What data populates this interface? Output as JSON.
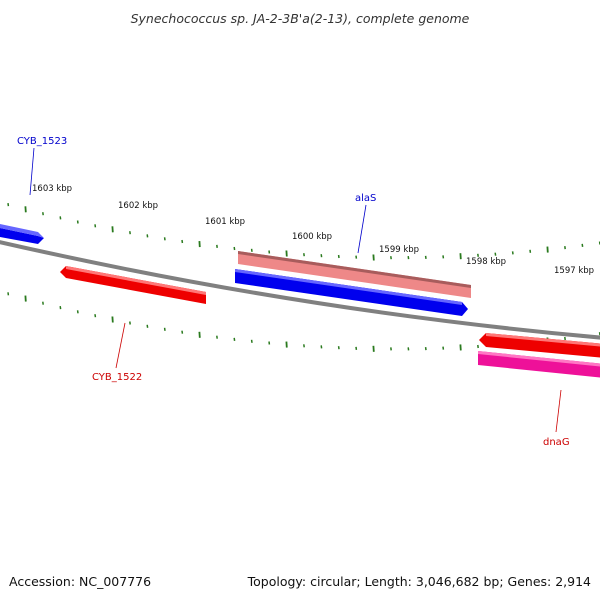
{
  "title": "Synechococcus sp. JA-2-3B'a(2-13), complete genome",
  "footer": {
    "accession": "Accession: NC_007776",
    "summary": "Topology: circular; Length: 3,046,682 bp; Genes: 2,914"
  },
  "colors": {
    "backbone": "#808080",
    "tick": "#2a7a1e",
    "forward_gene": "#0000ee",
    "reverse_gene": "#ee0000",
    "rna_gene": "#ee7777",
    "pink_gene": "#ee1199"
  },
  "scale_labels": [
    "1603 kbp",
    "1602 kbp",
    "1601 kbp",
    "1600 kbp",
    "1599 kbp",
    "1598 kbp",
    "1597 kbp"
  ],
  "genes": [
    {
      "name": "CYB_1523",
      "strand": "forward",
      "label_color": "#0000cc"
    },
    {
      "name": "CYB_1522",
      "strand": "reverse",
      "label_color": "#cc0000"
    },
    {
      "name": "alaS",
      "strand": "forward",
      "label_color": "#0000cc"
    },
    {
      "name": "dnaG",
      "strand": "reverse",
      "label_color": "#cc0000"
    }
  ]
}
